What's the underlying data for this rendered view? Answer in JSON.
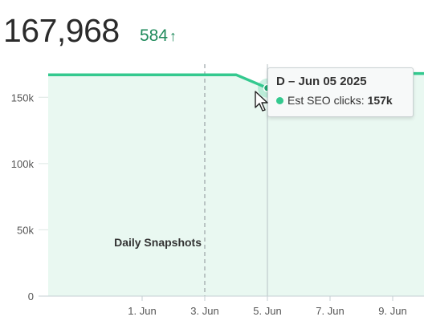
{
  "metric": {
    "value": "167,968",
    "delta": "584",
    "delta_icon": "arrow-up-icon",
    "delta_color": "#1f8a5b"
  },
  "tooltip": {
    "title": "D – Jun 05 2025",
    "series_label": "Est SEO clicks:",
    "value": "157k"
  },
  "colors": {
    "line": "#34c98f",
    "fill": "#e9f8f1",
    "grid": "#dde7e3",
    "tick_text": "#555555"
  },
  "chart_data": {
    "type": "area",
    "title": "",
    "xlabel": "",
    "ylabel": "",
    "ylim": [
      0,
      175000
    ],
    "y_ticks": [
      0,
      50000,
      100000,
      150000
    ],
    "y_tick_labels": [
      "0",
      "50k",
      "100k",
      "150k"
    ],
    "xlim": [
      "2025-05-29",
      "2025-06-10"
    ],
    "x_ticks": [
      "2025-06-01",
      "2025-06-03",
      "2025-06-05",
      "2025-06-07",
      "2025-06-09"
    ],
    "x_tick_labels": [
      "1. Jun",
      "3. Jun",
      "5. Jun",
      "7. Jun",
      "9. Jun"
    ],
    "series": [
      {
        "points": [
          {
            "x": "2025-05-29",
            "y": 167000
          },
          {
            "x": "2025-06-03",
            "y": 167000
          },
          {
            "x": "2025-06-04",
            "y": 167000
          },
          {
            "x": "2025-06-05",
            "y": 157000
          },
          {
            "x": "2025-06-06",
            "y": 167500
          },
          {
            "x": "2025-06-07",
            "y": 167500
          },
          {
            "x": "2025-06-08",
            "y": 167500
          },
          {
            "x": "2025-06-09",
            "y": 168000
          },
          {
            "x": "2025-06-10",
            "y": 168000
          }
        ]
      }
    ],
    "annotations": [
      {
        "x": "2025-06-03",
        "label": "Daily Snapshots",
        "style": "dashed-vertical-line"
      }
    ],
    "highlight": {
      "x": "2025-06-05"
    },
    "grid": true,
    "legend": "none"
  }
}
